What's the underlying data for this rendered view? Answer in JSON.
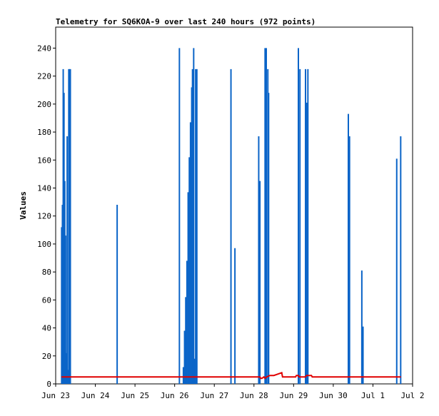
{
  "chart_data": {
    "type": "line",
    "title": "Telemetry for SQ6KOA-9 over last 240 hours (972 points)",
    "xlabel": "",
    "ylabel": "Values",
    "x_ticks": [
      "Jun 23",
      "Jun 24",
      "Jun 25",
      "Jun 26",
      "Jun 27",
      "Jun 28",
      "Jun 29",
      "Jun 30",
      "Jul 1",
      "Jul 2"
    ],
    "xlim": [
      0,
      9
    ],
    "y_ticks": [
      0,
      20,
      40,
      60,
      80,
      100,
      120,
      140,
      160,
      180,
      200,
      220,
      240
    ],
    "ylim": [
      0,
      255
    ],
    "grid": false,
    "legend": "none",
    "colors": {
      "series_blue": "#0a64c8",
      "series_red": "#e00000"
    },
    "series": [
      {
        "color_key": "series_blue",
        "spikes": [
          [
            0.15,
            112
          ],
          [
            0.17,
            128
          ],
          [
            0.19,
            225
          ],
          [
            0.21,
            208
          ],
          [
            0.23,
            145
          ],
          [
            0.25,
            106
          ],
          [
            0.27,
            22
          ],
          [
            0.29,
            177
          ],
          [
            0.31,
            10
          ],
          [
            0.33,
            225
          ],
          [
            0.35,
            225
          ],
          [
            0.37,
            225
          ],
          [
            1.55,
            128
          ],
          [
            3.12,
            240
          ],
          [
            3.22,
            12
          ],
          [
            3.25,
            38
          ],
          [
            3.28,
            62
          ],
          [
            3.31,
            88
          ],
          [
            3.34,
            137
          ],
          [
            3.37,
            162
          ],
          [
            3.4,
            187
          ],
          [
            3.43,
            212
          ],
          [
            3.45,
            225
          ],
          [
            3.48,
            240
          ],
          [
            3.5,
            18
          ],
          [
            3.53,
            225
          ],
          [
            3.56,
            225
          ],
          [
            4.42,
            225
          ],
          [
            4.52,
            97
          ],
          [
            5.12,
            177
          ],
          [
            5.15,
            145
          ],
          [
            5.28,
            240
          ],
          [
            5.31,
            240
          ],
          [
            5.35,
            225
          ],
          [
            5.37,
            208
          ],
          [
            6.12,
            240
          ],
          [
            6.16,
            225
          ],
          [
            6.3,
            225
          ],
          [
            6.33,
            201
          ],
          [
            6.36,
            225
          ],
          [
            7.38,
            193
          ],
          [
            7.41,
            177
          ],
          [
            7.72,
            81
          ],
          [
            7.75,
            41
          ],
          [
            8.6,
            161
          ],
          [
            8.7,
            177
          ]
        ]
      },
      {
        "color_key": "series_red",
        "points": [
          [
            0.15,
            5
          ],
          [
            5.15,
            5
          ],
          [
            5.17,
            4
          ],
          [
            5.2,
            4
          ],
          [
            5.25,
            5
          ],
          [
            5.28,
            4
          ],
          [
            5.32,
            5
          ],
          [
            5.4,
            6
          ],
          [
            5.5,
            6
          ],
          [
            5.6,
            7
          ],
          [
            5.7,
            8
          ],
          [
            5.72,
            5
          ],
          [
            6.05,
            5
          ],
          [
            6.07,
            6
          ],
          [
            6.12,
            6
          ],
          [
            6.14,
            5
          ],
          [
            6.3,
            5
          ],
          [
            6.32,
            6
          ],
          [
            6.45,
            6
          ],
          [
            6.47,
            5
          ],
          [
            8.7,
            5
          ]
        ]
      }
    ]
  }
}
